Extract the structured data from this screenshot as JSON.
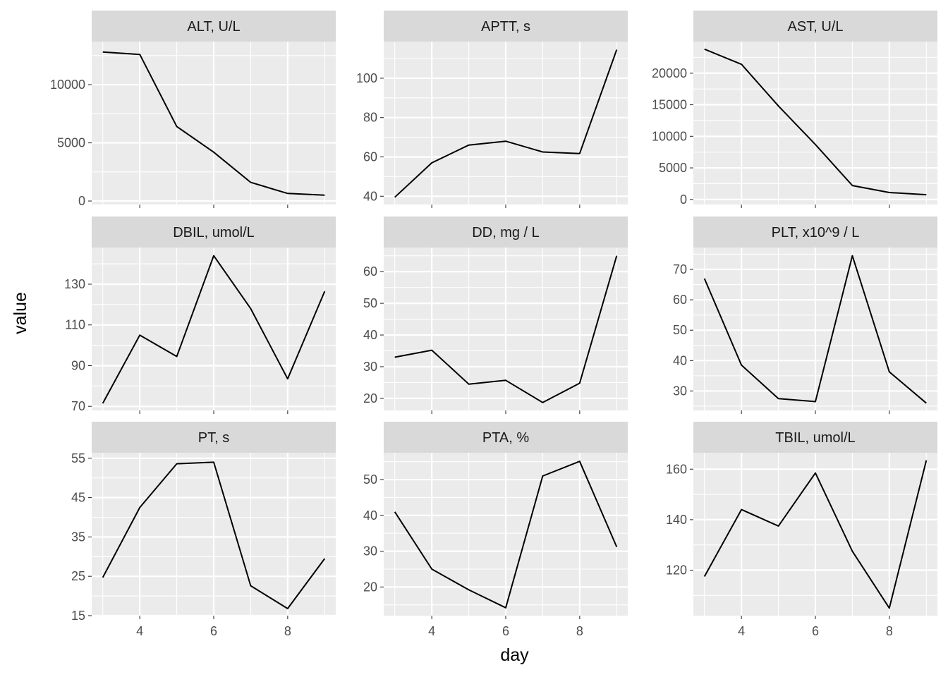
{
  "chart_data": {
    "type": "line",
    "x_label": "day",
    "y_label": "value",
    "x_ticks": [
      4,
      6,
      8
    ],
    "x_range": [
      2.7,
      9.3
    ],
    "grid": true,
    "colors": {
      "panel_bg": "#ebebeb",
      "grid": "#ffffff",
      "strip_bg": "#d9d9d9",
      "line": "#000000",
      "tick_text": "#4d4d4d"
    },
    "panels": [
      {
        "title": "ALT, U/L",
        "x": [
          3,
          4,
          5,
          6,
          7,
          8,
          9
        ],
        "y": [
          12800,
          12600,
          6400,
          4200,
          1600,
          650,
          500
        ],
        "y_range": [
          -300,
          13700
        ],
        "y_ticks": [
          0,
          5000,
          10000
        ]
      },
      {
        "title": "APTT, s",
        "x": [
          3,
          4,
          5,
          6,
          7,
          8,
          9
        ],
        "y": [
          39.5,
          57,
          66,
          68,
          62.5,
          61.7,
          114.5
        ],
        "y_range": [
          35.8,
          118.6
        ],
        "y_ticks": [
          40,
          60,
          80,
          100
        ]
      },
      {
        "title": "AST, U/L",
        "x": [
          3,
          4,
          5,
          6,
          7,
          8,
          9
        ],
        "y": [
          23800,
          21400,
          14800,
          8700,
          2200,
          1100,
          750
        ],
        "y_range": [
          -800,
          25000
        ],
        "y_ticks": [
          0,
          5000,
          10000,
          15000,
          20000
        ]
      },
      {
        "title": "DBIL, umol/L",
        "x": [
          3,
          4,
          5,
          6,
          7,
          8,
          9
        ],
        "y": [
          71.5,
          105,
          94.5,
          144,
          118,
          83.5,
          126.5
        ],
        "y_range": [
          68,
          148
        ],
        "y_ticks": [
          70,
          90,
          110,
          130
        ]
      },
      {
        "title": "DD, mg / L",
        "x": [
          3,
          4,
          5,
          6,
          7,
          8,
          9
        ],
        "y": [
          33,
          35.2,
          24.5,
          25.7,
          18.7,
          24.8,
          65
        ],
        "y_range": [
          16.2,
          67.6
        ],
        "y_ticks": [
          20,
          30,
          40,
          50,
          60
        ]
      },
      {
        "title": "PLT, x10^9 / L",
        "x": [
          3,
          4,
          5,
          6,
          7,
          8,
          9
        ],
        "y": [
          67,
          38.5,
          27.5,
          26.5,
          74.5,
          36.3,
          26
        ],
        "y_range": [
          23.6,
          77.2
        ],
        "y_ticks": [
          30,
          40,
          50,
          60,
          70
        ]
      },
      {
        "title": "PT, s",
        "x": [
          3,
          4,
          5,
          6,
          7,
          8,
          9
        ],
        "y": [
          24.7,
          42.5,
          53.6,
          54,
          22.6,
          16.8,
          29.5
        ],
        "y_range": [
          15,
          56.4
        ],
        "y_ticks": [
          15,
          25,
          35,
          45,
          55
        ]
      },
      {
        "title": "PTA, %",
        "x": [
          3,
          4,
          5,
          6,
          7,
          8,
          9
        ],
        "y": [
          41,
          25,
          19.2,
          14.2,
          51,
          55.1,
          31.2
        ],
        "y_range": [
          12,
          57.5
        ],
        "y_ticks": [
          20,
          30,
          40,
          50
        ]
      },
      {
        "title": "TBIL, umol/L",
        "x": [
          3,
          4,
          5,
          6,
          7,
          8,
          9
        ],
        "y": [
          117.5,
          144,
          137.5,
          158.5,
          127.5,
          105,
          163.5
        ],
        "y_range": [
          102,
          166.5
        ],
        "y_ticks": [
          120,
          140,
          160
        ]
      }
    ]
  }
}
